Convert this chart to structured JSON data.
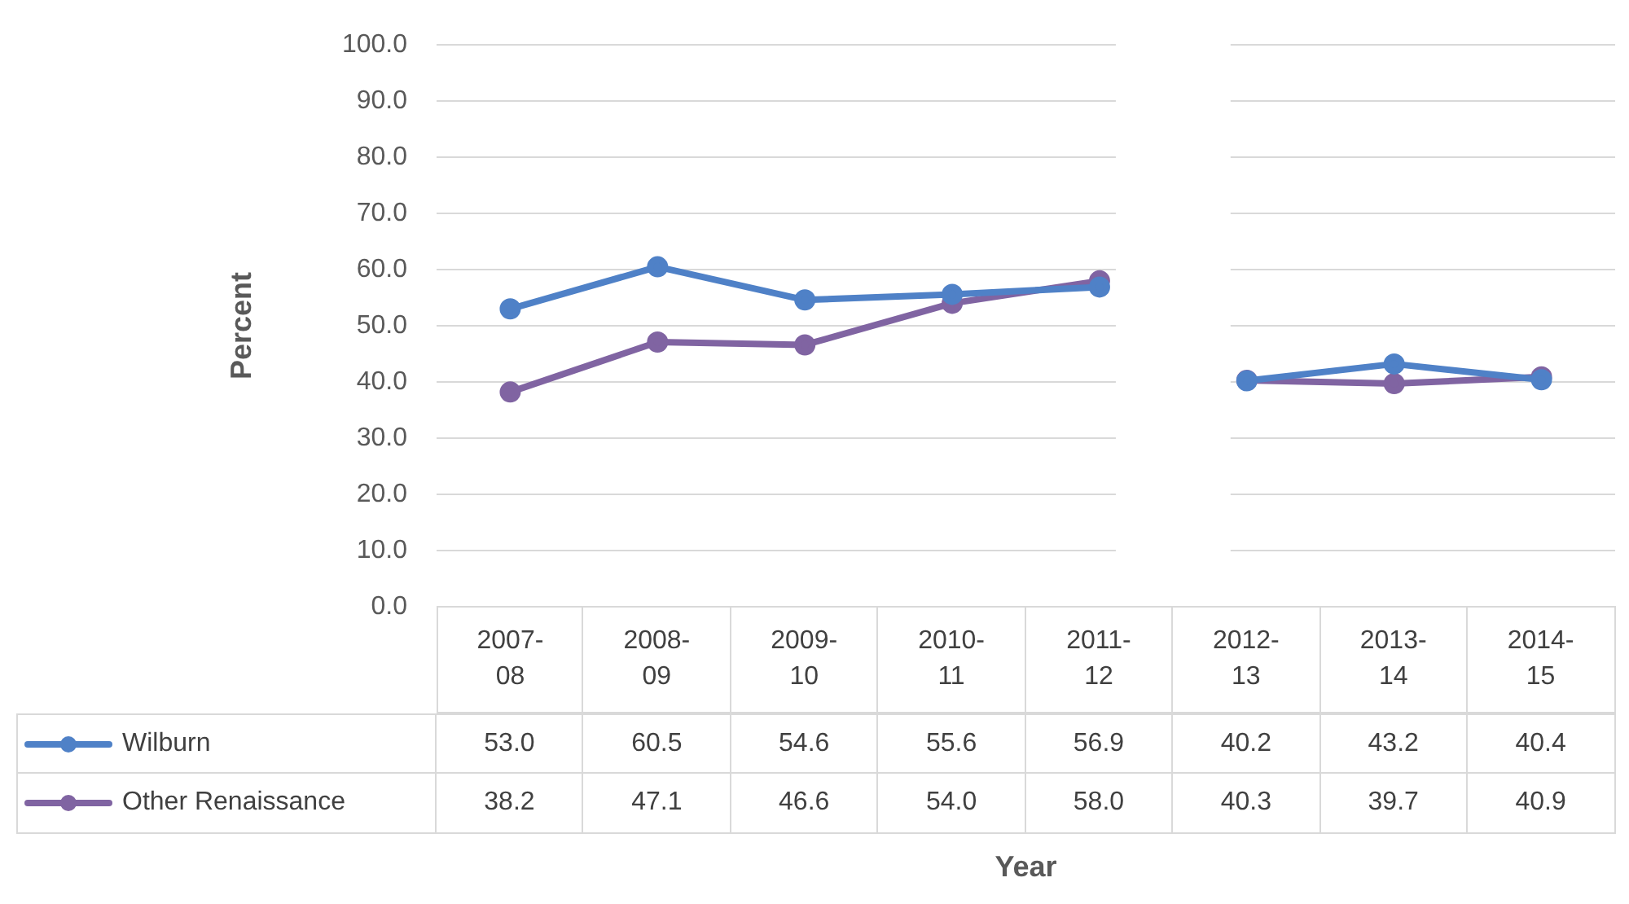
{
  "chart_data": {
    "type": "line",
    "annotations": [
      "Year"
    ],
    "ylabel": "Percent",
    "categories": [
      "2007-08",
      "2008-09",
      "2009-10",
      "2010-11",
      "2011-12",
      "2012-13",
      "2013-14",
      "2014-15"
    ],
    "series": [
      {
        "name": "Wilburn",
        "color": "#4f81c7",
        "values": [
          53.0,
          60.5,
          54.6,
          55.6,
          56.9,
          40.2,
          43.2,
          40.4
        ],
        "value_labels": [
          "53.0",
          "60.5",
          "54.6",
          "55.6",
          "56.9",
          "40.2",
          "43.2",
          "40.4"
        ]
      },
      {
        "name": "Other Renaissance",
        "color": "#8064a2",
        "values": [
          38.2,
          47.1,
          46.6,
          54.0,
          58.0,
          40.3,
          39.7,
          40.9
        ],
        "value_labels": [
          "38.2",
          "47.1",
          "46.6",
          "54.0",
          "58.0",
          "40.3",
          "39.7",
          "40.9"
        ]
      }
    ],
    "ylim": [
      0,
      100
    ],
    "yticks": [
      {
        "value": 0,
        "label": "0.0"
      },
      {
        "value": 10,
        "label": "10.0"
      },
      {
        "value": 20,
        "label": "20.0"
      },
      {
        "value": 30,
        "label": "30.0"
      },
      {
        "value": 40,
        "label": "40.0"
      },
      {
        "value": 50,
        "label": "50.0"
      },
      {
        "value": 60,
        "label": "60.0"
      },
      {
        "value": 70,
        "label": "70.0"
      },
      {
        "value": 80,
        "label": "80.0"
      },
      {
        "value": 90,
        "label": "90.0"
      },
      {
        "value": 100,
        "label": "100.0"
      }
    ],
    "bands": [
      {
        "axis": "x",
        "from": "2011-12",
        "to": "2012-13",
        "color": "#ffffff"
      }
    ],
    "grid": "y",
    "marker": "circle",
    "line_style": "solid",
    "legend": "bottom left"
  }
}
